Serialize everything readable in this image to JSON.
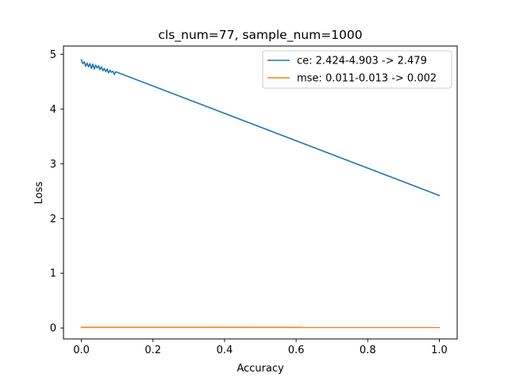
{
  "chart_data": {
    "type": "line",
    "title": "cls_num=77, sample_num=1000",
    "xlabel": "Accuracy",
    "ylabel": "Loss",
    "xlim": [
      -0.05,
      1.05
    ],
    "ylim": [
      -0.2,
      5.15
    ],
    "xticks": [
      0.0,
      0.2,
      0.4,
      0.6,
      0.8,
      1.0
    ],
    "xtick_labels": [
      "0.0",
      "0.2",
      "0.4",
      "0.6",
      "0.8",
      "1.0"
    ],
    "yticks": [
      0,
      1,
      2,
      3,
      4,
      5
    ],
    "ytick_labels": [
      "0",
      "1",
      "2",
      "3",
      "4",
      "5"
    ],
    "grid": false,
    "legend_position": "top-right",
    "series": [
      {
        "name": "ce: 2.424-4.903 -> 2.479",
        "color": "#1f77b4",
        "x": [
          0.0,
          0.004,
          0.008,
          0.012,
          0.016,
          0.02,
          0.024,
          0.028,
          0.032,
          0.036,
          0.04,
          0.044,
          0.048,
          0.052,
          0.056,
          0.06,
          0.064,
          0.068,
          0.072,
          0.076,
          0.08,
          0.084,
          0.088,
          0.092,
          0.096,
          0.1,
          1.0
        ],
        "y": [
          4.9,
          4.83,
          4.86,
          4.78,
          4.84,
          4.77,
          4.83,
          4.74,
          4.82,
          4.73,
          4.8,
          4.75,
          4.79,
          4.72,
          4.77,
          4.7,
          4.74,
          4.68,
          4.73,
          4.66,
          4.71,
          4.67,
          4.69,
          4.63,
          4.68,
          4.67,
          2.42
        ]
      },
      {
        "name": "mse: 0.011-0.013 -> 0.002",
        "color": "#ff7f0e",
        "x": [
          0.0,
          1.0
        ],
        "y": [
          0.013,
          0.011
        ]
      }
    ]
  }
}
